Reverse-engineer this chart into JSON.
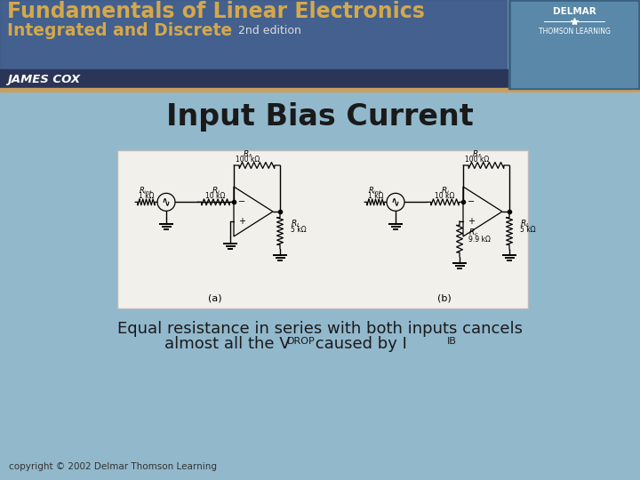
{
  "title": "Input Bias Current",
  "sub_line1": "Equal resistance in series with both inputs cancels",
  "sub_pre": "almost all the V",
  "sub_drop": "DROP",
  "sub_mid": " caused by I",
  "sub_ib": "IB",
  "copyright": "copyright © 2002 Delmar Thomson Learning",
  "hdr_line1": "Fundamentals of Linear Electronics",
  "hdr_line2": "Integrated and Discrete",
  "hdr_edition": "2nd edition",
  "hdr_author": "JAMES COX",
  "pub1": "DELMAR",
  "pub2": "THOMSON LEARNING",
  "slide_bg": "#92b8cc",
  "hdr_bg_left": "#4a6898",
  "hdr_bar_bottom": "#2a3558",
  "hdr_text": "#d4a84b",
  "pub_box_bg": "#5a85a8",
  "circuit_bg": "#f2f0eb",
  "circuit_border": "#bbbbbb",
  "title_color": "#1a1a1a",
  "body_text_color": "#1a1a1a",
  "cright_color": "#333333"
}
